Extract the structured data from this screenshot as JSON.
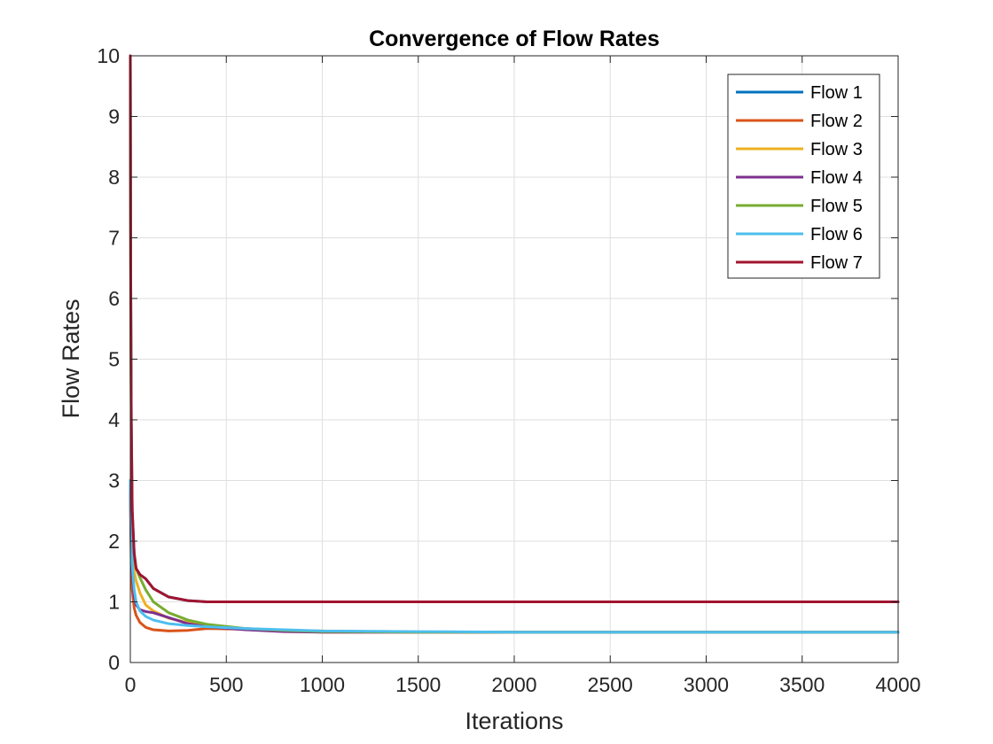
{
  "chart_data": {
    "type": "line",
    "title": "Convergence of Flow Rates",
    "xlabel": "Iterations",
    "ylabel": "Flow Rates",
    "xlim": [
      0,
      4000
    ],
    "ylim": [
      0,
      10
    ],
    "xticks": [
      0,
      500,
      1000,
      1500,
      2000,
      2500,
      3000,
      3500,
      4000
    ],
    "yticks": [
      0,
      1,
      2,
      3,
      4,
      5,
      6,
      7,
      8,
      9,
      10
    ],
    "grid": true,
    "legend_position": "top-right",
    "series": [
      {
        "name": "Flow 1",
        "color": "#0072BD",
        "x": [
          0,
          2,
          5,
          10,
          20,
          30,
          50,
          80,
          120,
          200,
          300,
          400,
          600,
          800,
          1000,
          1500,
          2000,
          3000,
          4000
        ],
        "y": [
          10,
          6.5,
          4.0,
          2.5,
          1.8,
          1.55,
          1.45,
          1.38,
          1.22,
          1.08,
          1.02,
          1.0,
          1.0,
          1.0,
          1.0,
          1.0,
          1.0,
          1.0,
          1.0
        ]
      },
      {
        "name": "Flow 2",
        "color": "#D95319",
        "x": [
          0,
          2,
          5,
          10,
          20,
          30,
          50,
          80,
          120,
          200,
          300,
          400,
          600,
          800,
          1000,
          1500,
          2000,
          3000,
          4000
        ],
        "y": [
          3.0,
          2.2,
          1.6,
          1.2,
          0.9,
          0.78,
          0.66,
          0.58,
          0.54,
          0.52,
          0.53,
          0.56,
          0.55,
          0.52,
          0.5,
          0.5,
          0.5,
          0.5,
          0.5
        ]
      },
      {
        "name": "Flow 3",
        "color": "#EDB120",
        "x": [
          0,
          2,
          5,
          10,
          20,
          30,
          50,
          80,
          120,
          200,
          300,
          400,
          600,
          800,
          1000,
          1500,
          2000,
          3000,
          4000
        ],
        "y": [
          3.0,
          2.5,
          2.1,
          1.8,
          1.5,
          1.35,
          1.15,
          0.95,
          0.85,
          0.73,
          0.66,
          0.61,
          0.56,
          0.53,
          0.52,
          0.5,
          0.5,
          0.5,
          0.5
        ]
      },
      {
        "name": "Flow 4",
        "color": "#7E2F8E",
        "x": [
          0,
          2,
          5,
          10,
          20,
          30,
          50,
          80,
          120,
          200,
          300,
          400,
          600,
          800,
          1000,
          1500,
          2000,
          3000,
          4000
        ],
        "y": [
          3.0,
          2.4,
          1.9,
          1.5,
          1.1,
          0.95,
          0.87,
          0.84,
          0.82,
          0.74,
          0.64,
          0.59,
          0.54,
          0.51,
          0.5,
          0.5,
          0.5,
          0.5,
          0.5
        ]
      },
      {
        "name": "Flow 5",
        "color": "#77AC30",
        "x": [
          0,
          2,
          5,
          10,
          20,
          30,
          50,
          80,
          120,
          200,
          300,
          400,
          600,
          800,
          1000,
          1500,
          2000,
          3000,
          4000
        ],
        "y": [
          10,
          6.0,
          3.5,
          2.3,
          1.75,
          1.55,
          1.4,
          1.2,
          1.0,
          0.82,
          0.7,
          0.63,
          0.56,
          0.53,
          0.51,
          0.5,
          0.5,
          0.5,
          0.5
        ]
      },
      {
        "name": "Flow 6",
        "color": "#4DBEEE",
        "x": [
          0,
          2,
          5,
          10,
          20,
          30,
          50,
          80,
          120,
          200,
          300,
          400,
          600,
          800,
          1000,
          1500,
          2000,
          3000,
          4000
        ],
        "y": [
          3.0,
          2.5,
          2.0,
          1.6,
          1.2,
          1.0,
          0.85,
          0.76,
          0.7,
          0.64,
          0.61,
          0.59,
          0.56,
          0.54,
          0.52,
          0.51,
          0.5,
          0.5,
          0.5
        ]
      },
      {
        "name": "Flow 7",
        "color": "#A2142F",
        "x": [
          0,
          2,
          5,
          10,
          20,
          30,
          50,
          80,
          120,
          200,
          300,
          400,
          600,
          800,
          1000,
          1500,
          2000,
          3000,
          4000
        ],
        "y": [
          10,
          6.5,
          4.0,
          2.5,
          1.8,
          1.55,
          1.45,
          1.38,
          1.22,
          1.08,
          1.02,
          1.0,
          1.0,
          1.0,
          1.0,
          1.0,
          1.0,
          1.0,
          1.0
        ]
      }
    ]
  }
}
